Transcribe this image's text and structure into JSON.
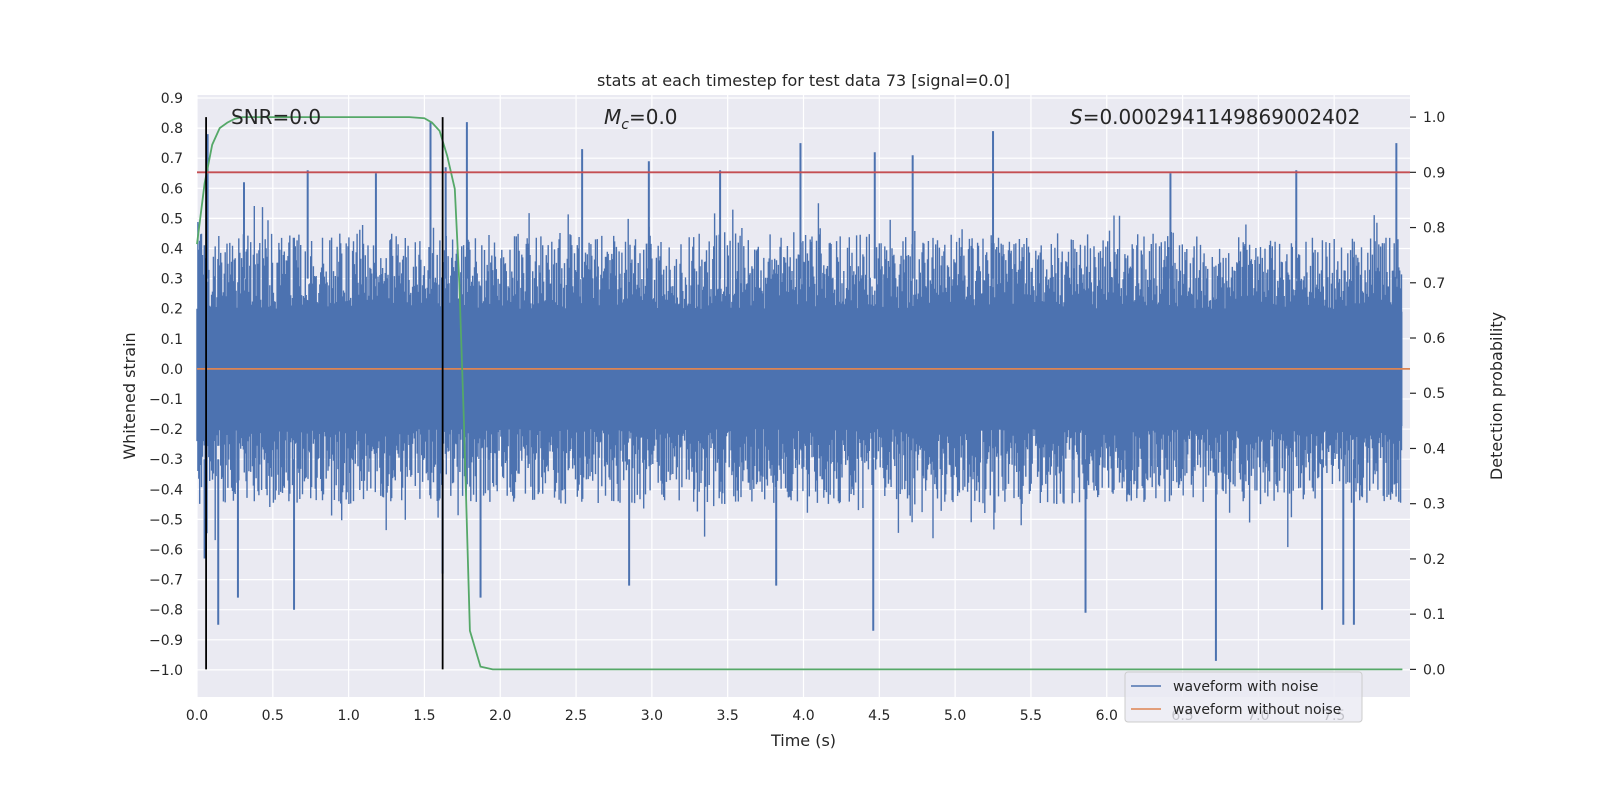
{
  "chart_data": {
    "type": "line",
    "title": "stats at each timestep for test data 73 [signal=0.0]",
    "xlabel": "Time (s)",
    "ylabel": "Whitened strain",
    "y2label": "Detection probability",
    "xlim": [
      0.0,
      8.0
    ],
    "ylim": [
      -1.09,
      0.91
    ],
    "y2lim": [
      -0.05,
      1.04
    ],
    "x_ticks": [
      "0.0",
      "0.5",
      "1.0",
      "1.5",
      "2.0",
      "2.5",
      "3.0",
      "3.5",
      "4.0",
      "4.5",
      "5.0",
      "5.5",
      "6.0",
      "6.5",
      "7.0",
      "7.5"
    ],
    "y_ticks": [
      "0.9",
      "0.8",
      "0.7",
      "0.6",
      "0.5",
      "0.4",
      "0.3",
      "0.2",
      "0.1",
      "0.0",
      "-0.1",
      "-0.2",
      "-0.3",
      "-0.4",
      "-0.5",
      "-0.6",
      "-0.7",
      "-0.8",
      "-0.9",
      "-1.0"
    ],
    "y2_ticks": [
      "1.0",
      "0.9",
      "0.8",
      "0.7",
      "0.6",
      "0.5",
      "0.4",
      "0.3",
      "0.2",
      "0.1",
      "0.0"
    ],
    "grid": true,
    "legend_position": "bottom-right",
    "annotations": {
      "snr": "SNR=0.0",
      "mc_symbol": "M",
      "mc_sub": "c",
      "mc_value": "=0.0",
      "s_symbol": "S",
      "s_value": "=0.0002941149869002402"
    },
    "threshold_y2": 0.9,
    "vertical_markers_x": [
      0.06,
      1.62
    ],
    "noise_envelope": {
      "x_range": [
        0.0,
        8.0
      ],
      "typical_max": 0.45,
      "typical_min": -0.45,
      "spikes_up": [
        {
          "x": 0.07,
          "y": 0.78
        },
        {
          "x": 0.31,
          "y": 0.62
        },
        {
          "x": 0.73,
          "y": 0.66
        },
        {
          "x": 1.18,
          "y": 0.65
        },
        {
          "x": 1.54,
          "y": 0.82
        },
        {
          "x": 1.64,
          "y": 0.67
        },
        {
          "x": 1.78,
          "y": 0.82
        },
        {
          "x": 2.54,
          "y": 0.73
        },
        {
          "x": 2.98,
          "y": 0.69
        },
        {
          "x": 3.45,
          "y": 0.66
        },
        {
          "x": 3.98,
          "y": 0.75
        },
        {
          "x": 4.47,
          "y": 0.72
        },
        {
          "x": 4.72,
          "y": 0.71
        },
        {
          "x": 5.25,
          "y": 0.79
        },
        {
          "x": 6.42,
          "y": 0.65
        },
        {
          "x": 7.25,
          "y": 0.66
        },
        {
          "x": 7.91,
          "y": 0.75
        }
      ],
      "spikes_down": [
        {
          "x": 0.05,
          "y": -0.63
        },
        {
          "x": 0.14,
          "y": -0.85
        },
        {
          "x": 0.27,
          "y": -0.76
        },
        {
          "x": 0.64,
          "y": -0.8
        },
        {
          "x": 1.62,
          "y": -0.68
        },
        {
          "x": 1.87,
          "y": -0.76
        },
        {
          "x": 2.85,
          "y": -0.72
        },
        {
          "x": 3.82,
          "y": -0.72
        },
        {
          "x": 4.46,
          "y": -0.87
        },
        {
          "x": 5.86,
          "y": -0.81
        },
        {
          "x": 6.72,
          "y": -0.97
        },
        {
          "x": 7.42,
          "y": -0.8
        },
        {
          "x": 7.56,
          "y": -0.85
        },
        {
          "x": 7.63,
          "y": -0.85
        }
      ]
    },
    "series": [
      {
        "name": "waveform with noise",
        "color": "#4c72b0",
        "axis": "left"
      },
      {
        "name": "waveform without noise",
        "color": "#dd8452",
        "axis": "left",
        "x": [
          0.0,
          8.0
        ],
        "values": [
          0.0,
          0.0
        ]
      },
      {
        "color": "#55a868",
        "axis": "right",
        "x": [
          0.0,
          0.05,
          0.1,
          0.15,
          0.2,
          0.25,
          0.3,
          0.35,
          0.45,
          0.6,
          1.0,
          1.4,
          1.5,
          1.55,
          1.6,
          1.65,
          1.7,
          1.73,
          1.76,
          1.8,
          1.87,
          1.95,
          7.95
        ],
        "values": [
          0.77,
          0.88,
          0.95,
          0.98,
          0.99,
          0.997,
          1.0,
          1.0,
          1.0,
          1.0,
          1.0,
          1.0,
          0.998,
          0.99,
          0.975,
          0.93,
          0.87,
          0.7,
          0.45,
          0.07,
          0.005,
          0.0,
          0.0
        ]
      },
      {
        "color": "#c44e52",
        "axis": "right",
        "x": [
          0.0,
          8.0
        ],
        "values": [
          0.9,
          0.9
        ]
      }
    ]
  }
}
